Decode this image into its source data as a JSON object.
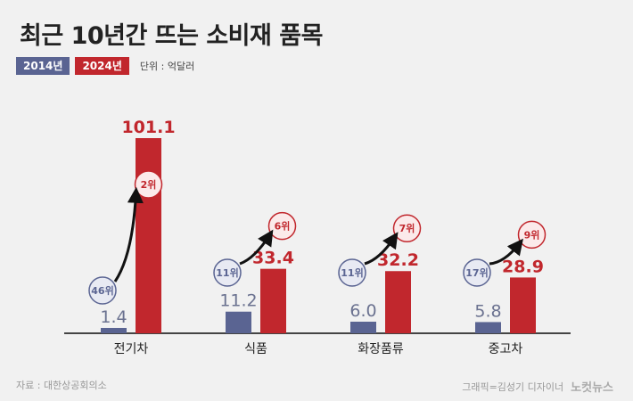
{
  "header": {
    "title_part1": "최근 10년간",
    "title_part2": "뜨는 소비재",
    "title_part3": "품목",
    "unit": "단위 : 억달러"
  },
  "footer": {
    "source": "자료 : 대한상공회의소",
    "credit": "그래픽=김성기 디자이너",
    "brand": "노컷뉴스"
  },
  "colors": {
    "y2014": "#5a6492",
    "y2024": "#c1272d",
    "label2014": "#6b7290",
    "label2024": "#c1272d",
    "axis": "#444444"
  },
  "chart_data": {
    "type": "bar",
    "title": "최근 10년간 뜨는 소비재 품목",
    "categories": [
      "전기차",
      "식품",
      "화장품류",
      "중고차"
    ],
    "series": [
      {
        "name": "2014년",
        "values": [
          1.4,
          11.2,
          6.0,
          5.8
        ],
        "ranks": [
          "46위",
          "11위",
          "11위",
          "17위"
        ]
      },
      {
        "name": "2024년",
        "values": [
          101.1,
          33.4,
          32.2,
          28.9
        ],
        "ranks": [
          "2위",
          "6위",
          "7위",
          "9위"
        ]
      }
    ],
    "value_labels": [
      [
        "1.4",
        "11.2",
        "6.0",
        "5.8"
      ],
      [
        "101.1",
        "33.4",
        "32.2",
        "28.9"
      ]
    ],
    "ylim": [
      0,
      101.1
    ],
    "unit": "단위 : 억달러"
  }
}
